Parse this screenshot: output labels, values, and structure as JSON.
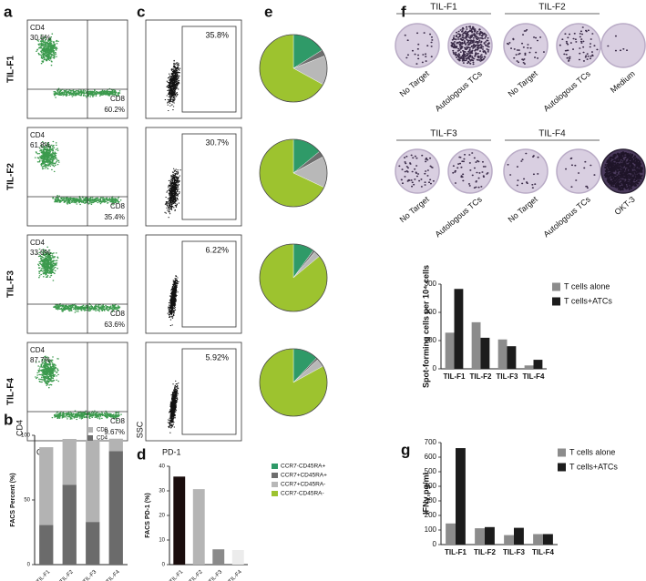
{
  "panel_letters": [
    "a",
    "b",
    "c",
    "d",
    "e",
    "f",
    "g"
  ],
  "flow_cd4_cd8": {
    "x_label": "CD8",
    "y_label": "CD4",
    "rows": [
      {
        "name": "TIL-F1",
        "cd4_label": "CD4",
        "cd4_pct": "30.6%",
        "cd8_label": "CD8",
        "cd8_pct": "60.2%"
      },
      {
        "name": "TIL-F2",
        "cd4_label": "CD4",
        "cd4_pct": "61.8%",
        "cd8_label": "CD8",
        "cd8_pct": "35.4%"
      },
      {
        "name": "TIL-F3",
        "cd4_label": "CD4",
        "cd4_pct": "33.0%",
        "cd8_label": "CD8",
        "cd8_pct": "63.6%"
      },
      {
        "name": "TIL-F4",
        "cd4_label": "CD4",
        "cd4_pct": "87.7%",
        "cd8_label": "CD8",
        "cd8_pct": "9.67%"
      }
    ]
  },
  "flow_pd1": {
    "x_label": "PD-1",
    "y_label": "SSC",
    "gates": [
      "35.8%",
      "30.7%",
      "6.22%",
      "5.92%"
    ]
  },
  "elispot": {
    "rows": [
      {
        "groups": [
          "TIL-F1",
          "TIL-F2"
        ],
        "wells": [
          "No Target",
          "Autologous TCs",
          "No Target",
          "Autologous TCs",
          "Medium"
        ]
      },
      {
        "groups": [
          "TIL-F3",
          "TIL-F4"
        ],
        "wells": [
          "No Target",
          "Autologous TCs",
          "No Target",
          "Autologous TCs",
          "OKT-3"
        ]
      }
    ]
  },
  "chart_data": [
    {
      "type": "bar",
      "stacked": true,
      "ylabel": "FACS Percent (%)",
      "categories": [
        "TIL-F1",
        "TIL-F2",
        "TIL-F3",
        "TIL-F4"
      ],
      "series": [
        {
          "name": "CD4",
          "color": "#6b6b6b",
          "values": [
            30.6,
            61.8,
            33.0,
            87.7
          ]
        },
        {
          "name": "CD8",
          "color": "#b3b3b3",
          "values": [
            60.2,
            35.4,
            63.6,
            9.67
          ]
        }
      ],
      "ylim": [
        0,
        100
      ],
      "yticks": [
        0,
        50,
        100
      ]
    },
    {
      "type": "bar",
      "ylabel": "FACS PD-1 (%)",
      "categories": [
        "TIL-F1",
        "TIL-F2",
        "TIL-F3",
        "TIL-F4"
      ],
      "values": [
        35.8,
        30.7,
        6.22,
        5.92
      ],
      "colors": [
        "#1a0d0d",
        "#b5b5b5",
        "#8a8a8a",
        "#ececec"
      ],
      "ylim": [
        0,
        40
      ],
      "yticks": [
        0,
        10,
        20,
        30,
        40
      ]
    },
    {
      "type": "pie",
      "categories": [
        "CCR7-CD45RA+",
        "CCR7+CD45RA+",
        "CCR7+CD45RA-",
        "CCR7-CD45RA-"
      ],
      "colors": [
        "#2f9a68",
        "#6e6e6e",
        "#b8b8b8",
        "#9dc32f"
      ],
      "values": [
        [
          16,
          3,
          14,
          67
        ],
        [
          14,
          3,
          15,
          68
        ],
        [
          10,
          1,
          3,
          86
        ],
        [
          12,
          1,
          4,
          83
        ]
      ]
    },
    {
      "type": "bar",
      "ylabel": "Spot-forming cells per 10⁴ cells",
      "categories": [
        "TIL-F1",
        "TIL-F2",
        "TIL-F3",
        "TIL-F4"
      ],
      "series": [
        {
          "name": "T cells alone",
          "color": "#8c8c8c",
          "values": [
            128,
            165,
            104,
            12
          ]
        },
        {
          "name": "T cells+ATCs",
          "color": "#1c1c1c",
          "values": [
            283,
            110,
            80,
            32
          ]
        }
      ],
      "ylim": [
        0,
        300
      ],
      "yticks": [
        0,
        100,
        200,
        300
      ]
    },
    {
      "type": "bar",
      "ylabel": "IFNγ,pg/ml",
      "categories": [
        "TIL-F1",
        "TIL-F2",
        "TIL-F3",
        "TIL-F4"
      ],
      "series": [
        {
          "name": "T cells alone",
          "color": "#8c8c8c",
          "values": [
            145,
            112,
            65,
            72
          ]
        },
        {
          "name": "T cells+ATCs",
          "color": "#1c1c1c",
          "values": [
            662,
            120,
            115,
            72
          ]
        }
      ],
      "ylim": [
        0,
        700
      ],
      "yticks": [
        0,
        100,
        200,
        300,
        400,
        500,
        600,
        700
      ]
    }
  ]
}
